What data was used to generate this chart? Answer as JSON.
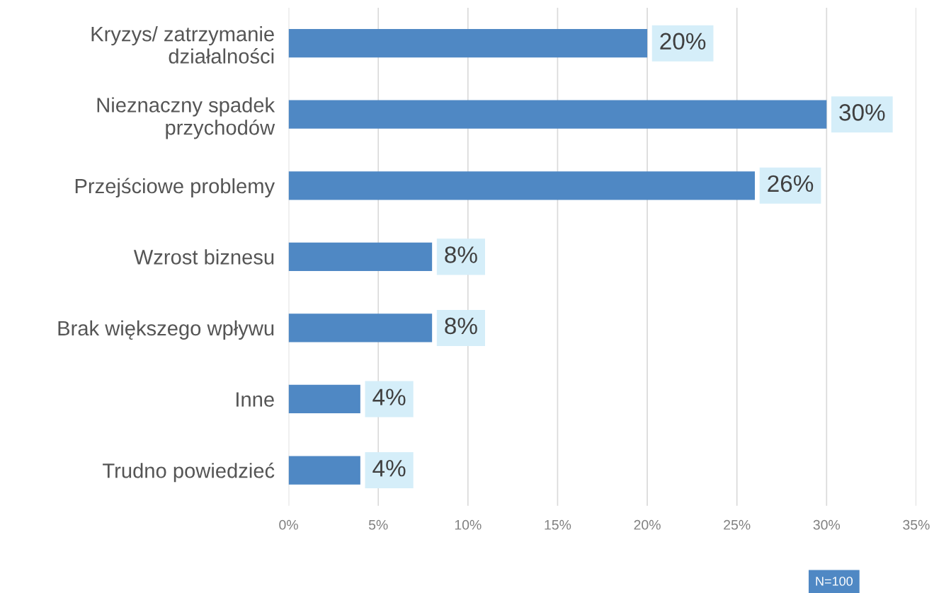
{
  "chart_data": {
    "type": "bar",
    "orientation": "horizontal",
    "categories": [
      "Kryzys/ zatrzymanie\ndziałalności",
      "Nieznaczny spadek\nprzychodów",
      "Przejściowe problemy",
      "Wzrost biznesu",
      "Brak większego wpływu",
      "Inne",
      "Trudno powiedzieć"
    ],
    "values": [
      20,
      30,
      26,
      8,
      8,
      4,
      4
    ],
    "value_labels": [
      "20%",
      "30%",
      "26%",
      "8%",
      "8%",
      "4%",
      "4%"
    ],
    "color": "#4f88c4",
    "xlim": [
      0,
      35
    ],
    "xticks": [
      {
        "value": 0,
        "label": "0%"
      },
      {
        "value": 5,
        "label": "5%"
      },
      {
        "value": 10,
        "label": "10%"
      },
      {
        "value": 15,
        "label": "15%"
      },
      {
        "value": 20,
        "label": "20%"
      },
      {
        "value": 25,
        "label": "25%"
      },
      {
        "value": 30,
        "label": "30%"
      },
      {
        "value": 35,
        "label": "35%"
      }
    ],
    "grid": "x",
    "annotations": [
      "N=100"
    ]
  }
}
